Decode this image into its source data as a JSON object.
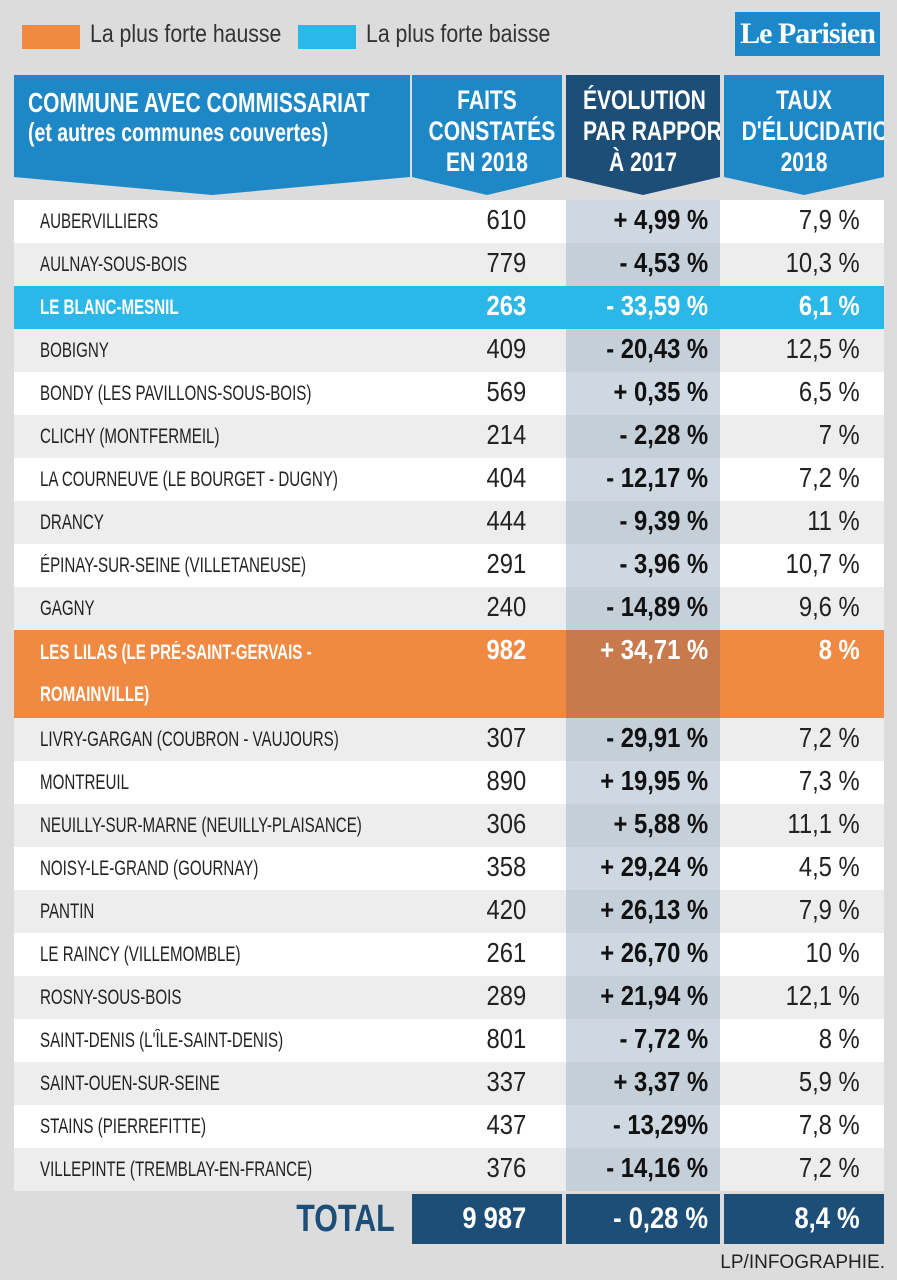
{
  "legend": [
    {
      "label": "La plus forte hausse",
      "color": "#f08a42"
    },
    {
      "label": "La plus forte baisse",
      "color": "#2bb7e8"
    }
  ],
  "logo": "Le Parisien",
  "table": {
    "columns": [
      {
        "lines": [
          "COMMUNE AVEC COMMISSARIAT",
          "(et autres communes couvertes)"
        ]
      },
      {
        "lines": [
          "FAITS",
          "CONSTATÉS",
          "EN 2018"
        ]
      },
      {
        "lines": [
          "ÉVOLUTION",
          "PAR RAPPORT",
          "À 2017"
        ]
      },
      {
        "lines": [
          "TAUX",
          "D'ÉLUCIDATION",
          "2018"
        ]
      }
    ],
    "rows": [
      {
        "cells": [
          "AUBERVILLIERS",
          "610",
          "+ 4,99 %",
          "7,9 %"
        ]
      },
      {
        "cells": [
          "AULNAY-SOUS-BOIS",
          "779",
          "- 4,53 %",
          "10,3 %"
        ]
      },
      {
        "cells": [
          "LE BLANC-MESNIL",
          "263",
          "- 33,59 %",
          "6,1 %"
        ],
        "highlight": 1
      },
      {
        "cells": [
          "BOBIGNY",
          "409",
          "- 20,43 %",
          "12,5 %"
        ]
      },
      {
        "cells": [
          "BONDY (LES PAVILLONS-SOUS-BOIS)",
          "569",
          "+ 0,35 %",
          "6,5 %"
        ]
      },
      {
        "cells": [
          "CLICHY (MONTFERMEIL)",
          "214",
          "- 2,28 %",
          "7 %"
        ]
      },
      {
        "cells": [
          "LA COURNEUVE (LE BOURGET - DUGNY)",
          "404",
          "- 12,17 %",
          "7,2 %"
        ]
      },
      {
        "cells": [
          "DRANCY",
          "444",
          "- 9,39 %",
          "11 %"
        ]
      },
      {
        "cells": [
          "ÉPINAY-SUR-SEINE (VILLETANEUSE)",
          "291",
          "- 3,96 %",
          "10,7 %"
        ]
      },
      {
        "cells": [
          "GAGNY",
          "240",
          "- 14,89 %",
          "9,6 %"
        ]
      },
      {
        "cells": [
          "LES LILAS (LE PRÉ-SAINT-GERVAIS - ROMAINVILLE)",
          "982",
          "+ 34,71 %",
          "8 %"
        ],
        "highlight": 0
      },
      {
        "cells": [
          "LIVRY-GARGAN (COUBRON - VAUJOURS)",
          "307",
          "- 29,91 %",
          "7,2 %"
        ]
      },
      {
        "cells": [
          "MONTREUIL",
          "890",
          "+ 19,95 %",
          "7,3 %"
        ]
      },
      {
        "cells": [
          "NEUILLY-SUR-MARNE (NEUILLY-PLAISANCE)",
          "306",
          "+ 5,88 %",
          "11,1 %"
        ]
      },
      {
        "cells": [
          "NOISY-LE-GRAND (GOURNAY)",
          "358",
          "+ 29,24 %",
          "4,5 %"
        ]
      },
      {
        "cells": [
          "PANTIN",
          "420",
          "+ 26,13 %",
          "7,9 %"
        ]
      },
      {
        "cells": [
          "LE RAINCY (VILLEMOMBLE)",
          "261",
          "+ 26,70 %",
          "10 %"
        ]
      },
      {
        "cells": [
          "ROSNY-SOUS-BOIS",
          "289",
          "+ 21,94 %",
          "12,1 %"
        ]
      },
      {
        "cells": [
          "SAINT-DENIS (L'ÎLE-SAINT-DENIS)",
          "801",
          "- 7,72 %",
          "8 %"
        ]
      },
      {
        "cells": [
          "SAINT-OUEN-SUR-SEINE",
          "337",
          "+ 3,37 %",
          "5,9 %"
        ]
      },
      {
        "cells": [
          "STAINS (PIERREFITTE)",
          "437",
          "- 13,29%",
          "7,8 %"
        ]
      },
      {
        "cells": [
          "VILLEPINTE (TREMBLAY-EN-FRANCE)",
          "376",
          "- 14,16 %",
          "7,2 %"
        ]
      }
    ],
    "total": [
      "TOTAL",
      "9 987",
      "- 0,28 %",
      "8,4 %"
    ]
  },
  "credit": "LP/INFOGRAPHIE."
}
